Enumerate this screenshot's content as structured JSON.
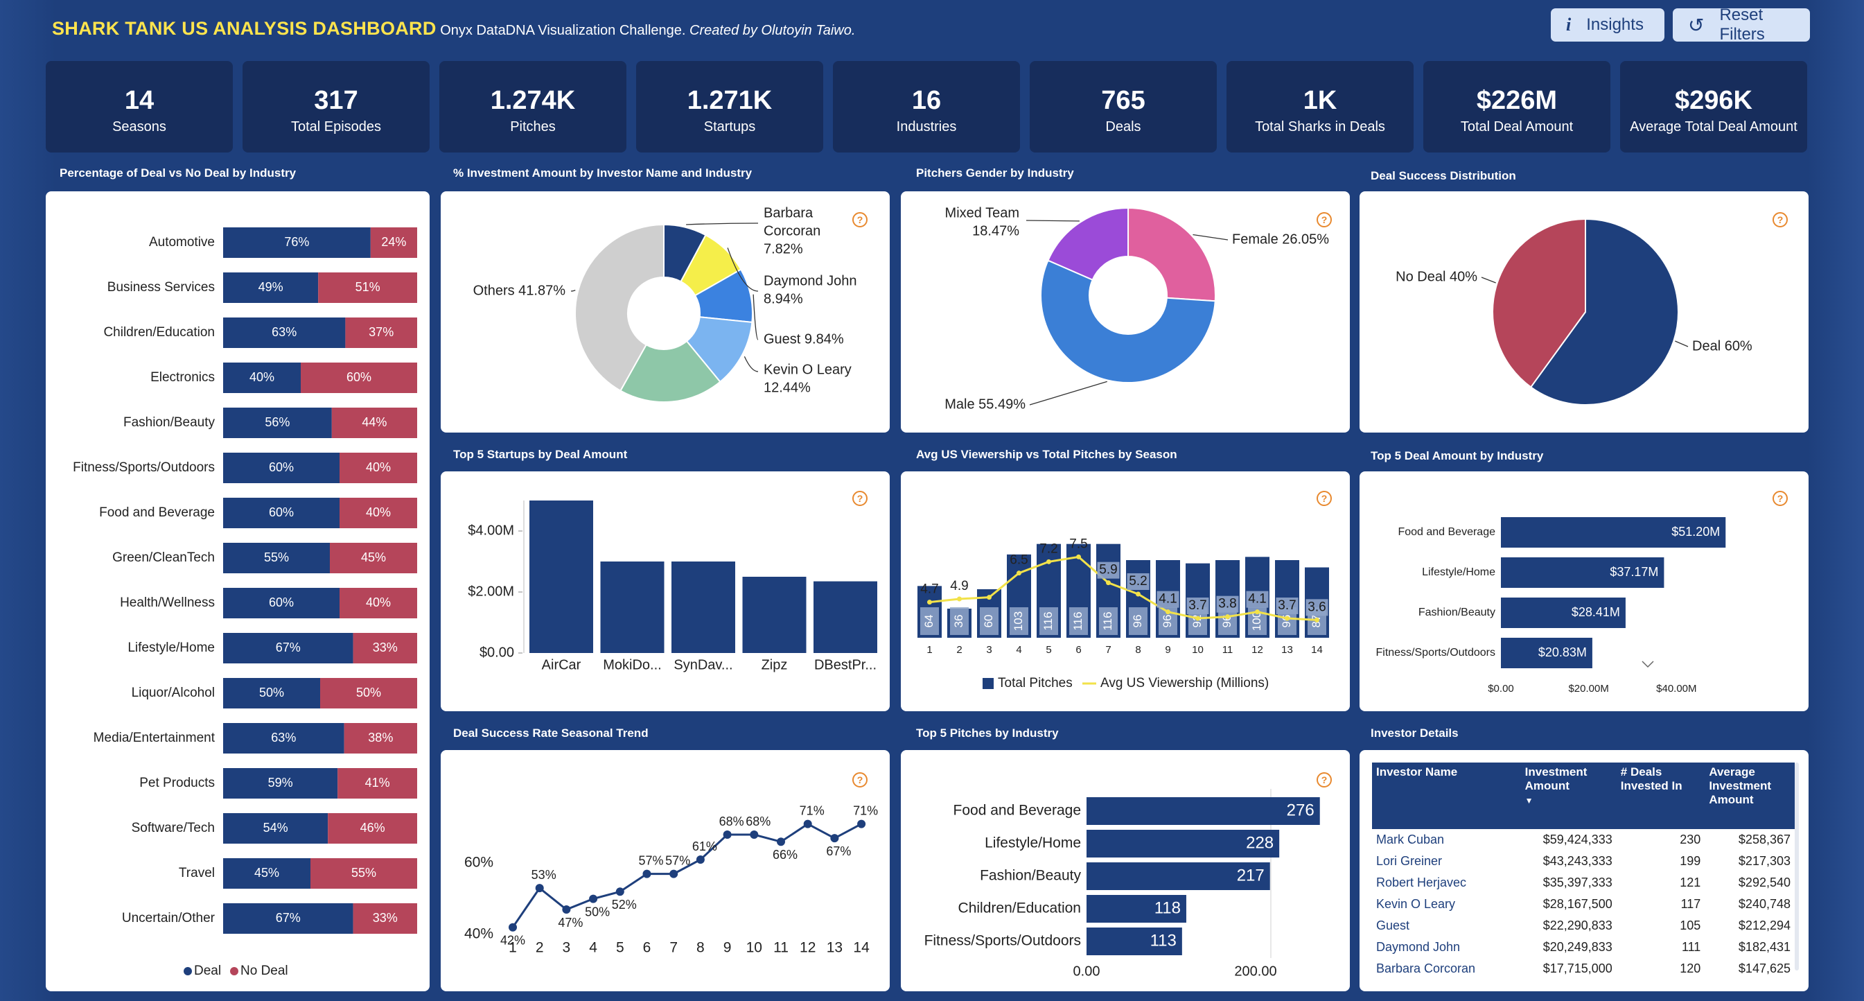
{
  "header": {
    "title": "SHARK TANK US ANALYSIS DASHBOARD",
    "subtitle_plain": "Onyx DataDNA Visualization Challenge.",
    "subtitle_italic": "Created by Olutoyin Taiwo.",
    "insights_label": "Insights",
    "reset_label": "Reset Filters"
  },
  "kpis": [
    {
      "value": "14",
      "label": "Seasons"
    },
    {
      "value": "317",
      "label": "Total Episodes"
    },
    {
      "value": "1.274K",
      "label": "Pitches"
    },
    {
      "value": "1.271K",
      "label": "Startups"
    },
    {
      "value": "16",
      "label": "Industries"
    },
    {
      "value": "765",
      "label": "Deals"
    },
    {
      "value": "1K",
      "label": "Total Sharks in Deals"
    },
    {
      "value": "$226M",
      "label": "Total Deal Amount"
    },
    {
      "value": "$296K",
      "label": "Average Total Deal Amount"
    }
  ],
  "titles": {
    "deal_vs_nodeal": "Percentage of Deal vs No Deal by Industry",
    "investment_pct": "% Investment Amount by Investor Name and Industry",
    "gender": "Pitchers Gender by Industry",
    "success_dist": "Deal Success Distribution",
    "top_startups": "Top 5 Startups by Deal Amount",
    "viewership": "Avg US Viewership vs Total Pitches by Season",
    "top_industry_amount": "Top 5 Deal Amount by Industry",
    "seasonal_trend": "Deal Success Rate Seasonal Trend",
    "top_pitches": "Top 5 Pitches by Industry",
    "investor_details": "Investor Details"
  },
  "colors": {
    "navy": "#1e3f7c",
    "red": "#b5455a",
    "panel": "#ffffff",
    "bg": "#1e3f7c",
    "yellow": "#ffe44d",
    "help": "#e8892f"
  },
  "chart_data": [
    {
      "id": "deal_vs_nodeal",
      "type": "bar",
      "stacked": true,
      "orientation": "horizontal",
      "categories": [
        "Automotive",
        "Business Services",
        "Children/Education",
        "Electronics",
        "Fashion/Beauty",
        "Fitness/Sports/Outdoors",
        "Food and Beverage",
        "Green/CleanTech",
        "Health/Wellness",
        "Lifestyle/Home",
        "Liquor/Alcohol",
        "Media/Entertainment",
        "Pet Products",
        "Software/Tech",
        "Travel",
        "Uncertain/Other"
      ],
      "series": [
        {
          "name": "Deal",
          "values": [
            76,
            49,
            63,
            40,
            56,
            60,
            60,
            55,
            60,
            67,
            50,
            63,
            59,
            54,
            45,
            67
          ],
          "labels": [
            "76%",
            "49%",
            "63%",
            "40%",
            "56%",
            "60%",
            "60%",
            "55%",
            "60%",
            "67%",
            "50%",
            "63%",
            "59%",
            "54%",
            "45%",
            "67%"
          ]
        },
        {
          "name": "No Deal",
          "values": [
            24,
            51,
            37,
            60,
            44,
            40,
            40,
            45,
            40,
            33,
            50,
            38,
            41,
            46,
            55,
            33
          ],
          "labels": [
            "24%",
            "51%",
            "37%",
            "60%",
            "44%",
            "40%",
            "40%",
            "45%",
            "40%",
            "33%",
            "50%",
            "38%",
            "41%",
            "46%",
            "55%",
            "33%"
          ]
        }
      ],
      "legend": "bottom"
    },
    {
      "id": "investment_pct",
      "type": "pie",
      "donut": true,
      "slices": [
        {
          "label": "Barbara Corcoran",
          "value": 7.82,
          "display": "7.82%",
          "color": "#1e3f7c"
        },
        {
          "label": "Daymond John",
          "value": 8.94,
          "display": "8.94%",
          "color": "#f5ee4a"
        },
        {
          "label": "Guest",
          "value": 9.84,
          "display": "9.84%",
          "color": "#3b82e0"
        },
        {
          "label": "Kevin O Leary",
          "value": 12.44,
          "display": "12.44%",
          "color": "#7bb4f0"
        },
        {
          "label": "",
          "value": 19.09,
          "display": "",
          "color": "#8ec7a8"
        },
        {
          "label": "Others",
          "value": 41.87,
          "display": "41.87%",
          "color": "#cfcfcf"
        }
      ]
    },
    {
      "id": "gender",
      "type": "pie",
      "donut": true,
      "slices": [
        {
          "label": "Female",
          "value": 26.05,
          "display": "26.05%",
          "color": "#e0609e"
        },
        {
          "label": "Male",
          "value": 55.49,
          "display": "55.49%",
          "color": "#3b7fd6"
        },
        {
          "label": "Mixed Team",
          "value": 18.47,
          "display": "18.47%",
          "color": "#9b4bd8"
        }
      ]
    },
    {
      "id": "success_dist",
      "type": "pie",
      "slices": [
        {
          "label": "Deal",
          "value": 60,
          "display": "60%",
          "color": "#1e3f7c"
        },
        {
          "label": "No Deal",
          "value": 40,
          "display": "40%",
          "color": "#b5455a"
        }
      ]
    },
    {
      "id": "top_startups",
      "type": "bar",
      "categories": [
        "AirCar",
        "MokiDo...",
        "SynDav...",
        "Zipz",
        "DBestPr..."
      ],
      "values": [
        5.0,
        3.0,
        3.0,
        2.5,
        2.35
      ],
      "yticks": [
        "$0.00",
        "$2.00M",
        "$4.00M"
      ],
      "ylim": [
        0,
        5.0
      ]
    },
    {
      "id": "viewership",
      "type": "bar+line",
      "x": [
        "1",
        "2",
        "3",
        "4",
        "5",
        "6",
        "7",
        "8",
        "9",
        "10",
        "11",
        "12",
        "13",
        "14"
      ],
      "series": [
        {
          "name": "Total Pitches",
          "type": "bar",
          "values": [
            64,
            36,
            60,
            103,
            116,
            116,
            116,
            96,
            96,
            92,
            96,
            100,
            96,
            87
          ]
        },
        {
          "name": "Avg US Viewership (Millions)",
          "type": "line",
          "values": [
            4.7,
            4.9,
            5.0,
            6.5,
            7.2,
            7.5,
            5.9,
            5.2,
            4.1,
            3.7,
            3.8,
            4.1,
            3.7,
            3.6
          ],
          "labels": [
            "4.7",
            "4.9",
            "",
            "6.5",
            "7.2",
            "7.5",
            "5.9",
            "5.2",
            "4.1",
            "3.7",
            "3.8",
            "4.1",
            "3.7",
            "3.6"
          ]
        }
      ],
      "legend": "bottom"
    },
    {
      "id": "top_industry_amount",
      "type": "bar",
      "orientation": "horizontal",
      "categories": [
        "Food and Beverage",
        "Lifestyle/Home",
        "Fashion/Beauty",
        "Fitness/Sports/Outdoors"
      ],
      "values": [
        51.2,
        37.17,
        28.41,
        20.83
      ],
      "labels": [
        "$51.20M",
        "$37.17M",
        "$28.41M",
        "$20.83M"
      ],
      "xticks": [
        "$0.00",
        "$20.00M",
        "$40.00M"
      ],
      "xlim": [
        0,
        60
      ]
    },
    {
      "id": "seasonal_trend",
      "type": "line",
      "x": [
        "1",
        "2",
        "3",
        "4",
        "5",
        "6",
        "7",
        "8",
        "9",
        "10",
        "11",
        "12",
        "13",
        "14"
      ],
      "values": [
        42,
        53,
        47,
        50,
        52,
        57,
        57,
        61,
        68,
        68,
        66,
        71,
        67,
        71
      ],
      "labels": [
        "42%",
        "53%",
        "47%",
        "50%",
        "52%",
        "57%",
        "57%",
        "61%",
        "68%",
        "68%",
        "66%",
        "71%",
        "67%",
        "71%"
      ],
      "yticks": [
        "40%",
        "60%"
      ],
      "ylim": [
        40,
        75
      ]
    },
    {
      "id": "top_pitches",
      "type": "bar",
      "orientation": "horizontal",
      "categories": [
        "Food and Beverage",
        "Lifestyle/Home",
        "Fashion/Beauty",
        "Children/Education",
        "Fitness/Sports/Outdoors"
      ],
      "values": [
        276,
        228,
        217,
        118,
        113
      ],
      "xticks": [
        "0.00",
        "200.00"
      ],
      "xlim": [
        0,
        300
      ]
    },
    {
      "id": "investor_details",
      "type": "table",
      "columns": [
        "Investor Name",
        "Investment Amount",
        "# Deals Invested In",
        "Average Investment Amount"
      ],
      "rows": [
        [
          "Mark Cuban",
          "$59,424,333",
          "230",
          "$258,367"
        ],
        [
          "Lori Greiner",
          "$43,243,333",
          "199",
          "$217,303"
        ],
        [
          "Robert Herjavec",
          "$35,397,333",
          "121",
          "$292,540"
        ],
        [
          "Kevin O Leary",
          "$28,167,500",
          "117",
          "$240,748"
        ],
        [
          "Guest",
          "$22,290,833",
          "105",
          "$212,294"
        ],
        [
          "Daymond John",
          "$20,249,833",
          "111",
          "$182,431"
        ],
        [
          "Barbara Corcoran",
          "$17,715,000",
          "120",
          "$147,625"
        ]
      ]
    }
  ]
}
